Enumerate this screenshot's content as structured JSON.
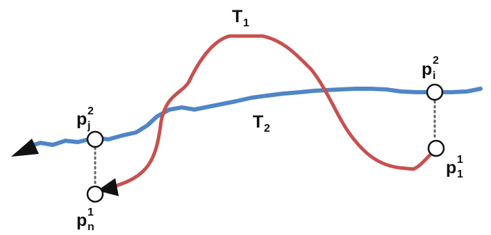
{
  "trajectories": {
    "t1": {
      "base": "T",
      "sub": "1",
      "color": "#c8504e"
    },
    "t2": {
      "base": "T",
      "sub": "2",
      "color": "#4f86c6"
    }
  },
  "points": {
    "pj2": {
      "base": "p",
      "sub": "j",
      "sup": "2"
    },
    "pn1": {
      "base": "p",
      "sub": "n",
      "sup": "1"
    },
    "pi2": {
      "base": "p",
      "sub": "i",
      "sup": "2"
    },
    "p11": {
      "base": "p",
      "sub": "1",
      "sup": "1"
    }
  }
}
